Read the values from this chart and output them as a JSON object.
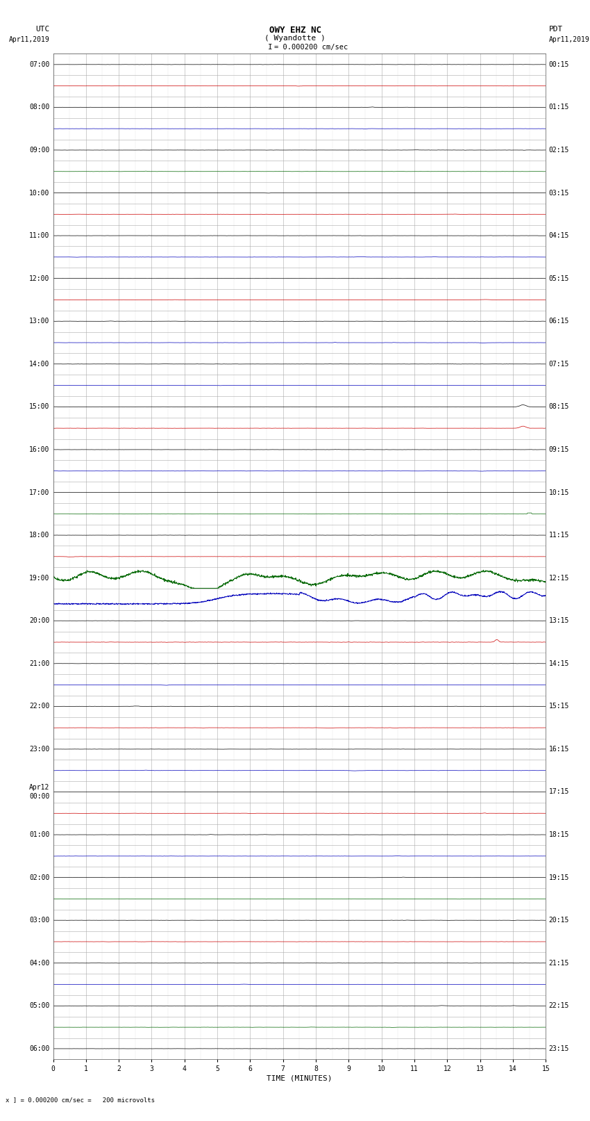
{
  "title_line1": "OWY EHZ NC",
  "title_line2": "( Wyandotte )",
  "scale_label": "I = 0.000200 cm/sec",
  "bottom_label": "x ] = 0.000200 cm/sec =   200 microvolts",
  "xlabel": "TIME (MINUTES)",
  "utc_labels": [
    "07:00",
    "",
    "08:00",
    "",
    "09:00",
    "",
    "10:00",
    "",
    "11:00",
    "",
    "12:00",
    "",
    "13:00",
    "",
    "14:00",
    "",
    "15:00",
    "",
    "16:00",
    "",
    "17:00",
    "",
    "18:00",
    "",
    "19:00",
    "",
    "20:00",
    "",
    "21:00",
    "",
    "22:00",
    "",
    "23:00",
    "",
    "Apr12\n00:00",
    "",
    "01:00",
    "",
    "02:00",
    "",
    "03:00",
    "",
    "04:00",
    "",
    "05:00",
    "",
    "06:00",
    ""
  ],
  "pdt_labels": [
    "00:15",
    "",
    "01:15",
    "",
    "02:15",
    "",
    "03:15",
    "",
    "04:15",
    "",
    "05:15",
    "",
    "06:15",
    "",
    "07:15",
    "",
    "08:15",
    "",
    "09:15",
    "",
    "10:15",
    "",
    "11:15",
    "",
    "12:15",
    "",
    "13:15",
    "",
    "14:15",
    "",
    "15:15",
    "",
    "16:15",
    "",
    "17:15",
    "",
    "18:15",
    "",
    "19:15",
    "",
    "20:15",
    "",
    "21:15",
    "",
    "22:15",
    "",
    "23:15",
    ""
  ],
  "n_rows": 47,
  "x_min": 0,
  "x_max": 15,
  "x_ticks": [
    0,
    1,
    2,
    3,
    4,
    5,
    6,
    7,
    8,
    9,
    10,
    11,
    12,
    13,
    14,
    15
  ],
  "background_color": "#ffffff",
  "grid_color": "#aaaaaa",
  "fig_width": 8.5,
  "fig_height": 16.13,
  "title_fontsize": 9,
  "label_fontsize": 8,
  "tick_fontsize": 7,
  "row_colors": [
    "black",
    "red",
    "black",
    "blue",
    "black",
    "green",
    "black",
    "red",
    "black",
    "blue",
    "black",
    "red",
    "black",
    "blue",
    "black",
    "blue",
    "black",
    "red",
    "black",
    "blue",
    "black",
    "green",
    "black",
    "red",
    "green",
    "blue",
    "black",
    "red",
    "black",
    "blue",
    "black",
    "red",
    "black",
    "blue",
    "black",
    "red",
    "black",
    "blue",
    "black",
    "green",
    "black",
    "red",
    "black",
    "blue",
    "black",
    "green",
    "black"
  ],
  "row_amplitudes": [
    0.008,
    0.008,
    0.008,
    0.008,
    0.008,
    0.008,
    0.008,
    0.008,
    0.008,
    0.008,
    0.008,
    0.008,
    0.008,
    0.008,
    0.008,
    0.008,
    0.008,
    0.008,
    0.008,
    0.008,
    0.008,
    0.008,
    0.008,
    0.008,
    0.35,
    0.3,
    0.008,
    0.015,
    0.008,
    0.008,
    0.008,
    0.008,
    0.008,
    0.008,
    0.008,
    0.008,
    0.008,
    0.008,
    0.008,
    0.008,
    0.008,
    0.008,
    0.008,
    0.008,
    0.008,
    0.008,
    0.008
  ]
}
